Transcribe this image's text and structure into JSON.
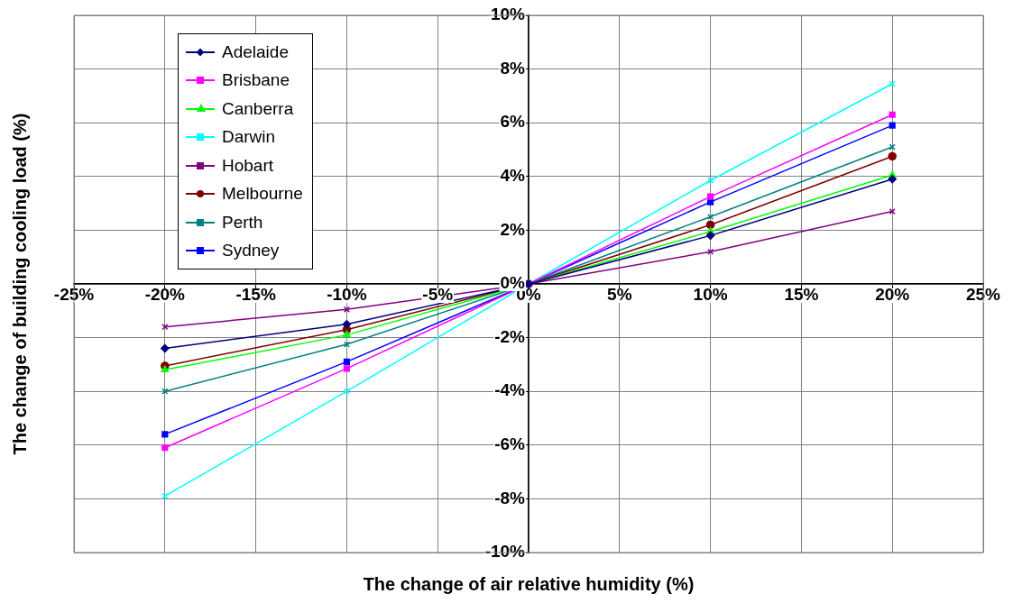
{
  "chart_data": {
    "type": "line",
    "xlabel": "The change of air relative humidity (%)",
    "ylabel": "The change of building cooling load (%)",
    "x": [
      -20,
      -10,
      0,
      10,
      20
    ],
    "xlim": [
      -25,
      25
    ],
    "xticks": [
      {
        "value": -25,
        "label": "-25%"
      },
      {
        "value": -20,
        "label": "-20%"
      },
      {
        "value": -15,
        "label": "-15%"
      },
      {
        "value": -10,
        "label": "-10%"
      },
      {
        "value": -5,
        "label": "-5%"
      },
      {
        "value": 0,
        "label": "0%"
      },
      {
        "value": 5,
        "label": "5%"
      },
      {
        "value": 10,
        "label": "10%"
      },
      {
        "value": 15,
        "label": "15%"
      },
      {
        "value": 20,
        "label": "20%"
      },
      {
        "value": 25,
        "label": "25%"
      }
    ],
    "ylim": [
      -10,
      10
    ],
    "yticks": [
      {
        "value": -10,
        "label": "-10%"
      },
      {
        "value": -8,
        "label": "-8%"
      },
      {
        "value": -6,
        "label": "-6%"
      },
      {
        "value": -4,
        "label": "-4%"
      },
      {
        "value": -2,
        "label": "-2%"
      },
      {
        "value": 0,
        "label": "0%"
      },
      {
        "value": 2,
        "label": "2%"
      },
      {
        "value": 4,
        "label": "4%"
      },
      {
        "value": 6,
        "label": "6%"
      },
      {
        "value": 8,
        "label": "8%"
      },
      {
        "value": 10,
        "label": "10%"
      }
    ],
    "grid": true,
    "legend": "top left",
    "line_style": "solid",
    "series": [
      {
        "name": "Adelaide",
        "color": "#000080",
        "marker": "diamond",
        "values": [
          -2.4,
          -1.5,
          0,
          1.8,
          3.9
        ]
      },
      {
        "name": "Brisbane",
        "color": "#ff00ff",
        "marker": "square",
        "values": [
          -6.1,
          -3.15,
          0,
          3.25,
          6.3
        ]
      },
      {
        "name": "Canberra",
        "color": "#00ff00",
        "marker": "triangle",
        "values": [
          -3.2,
          -1.9,
          0,
          1.95,
          4.05
        ]
      },
      {
        "name": "Darwin",
        "color": "#00ffff",
        "marker": "cross",
        "values": [
          -7.9,
          -4.0,
          0,
          3.85,
          7.45
        ]
      },
      {
        "name": "Hobart",
        "color": "#800080",
        "marker": "cross",
        "values": [
          -1.6,
          -0.95,
          0,
          1.2,
          2.7
        ]
      },
      {
        "name": "Melbourne",
        "color": "#800000",
        "marker": "circle",
        "values": [
          -3.05,
          -1.7,
          0,
          2.2,
          4.75
        ]
      },
      {
        "name": "Perth",
        "color": "#008080",
        "marker": "cross",
        "values": [
          -4.0,
          -2.25,
          0,
          2.5,
          5.1
        ]
      },
      {
        "name": "Sydney",
        "color": "#0000ff",
        "marker": "square",
        "values": [
          -5.6,
          -2.9,
          0,
          3.05,
          5.9
        ]
      }
    ]
  }
}
